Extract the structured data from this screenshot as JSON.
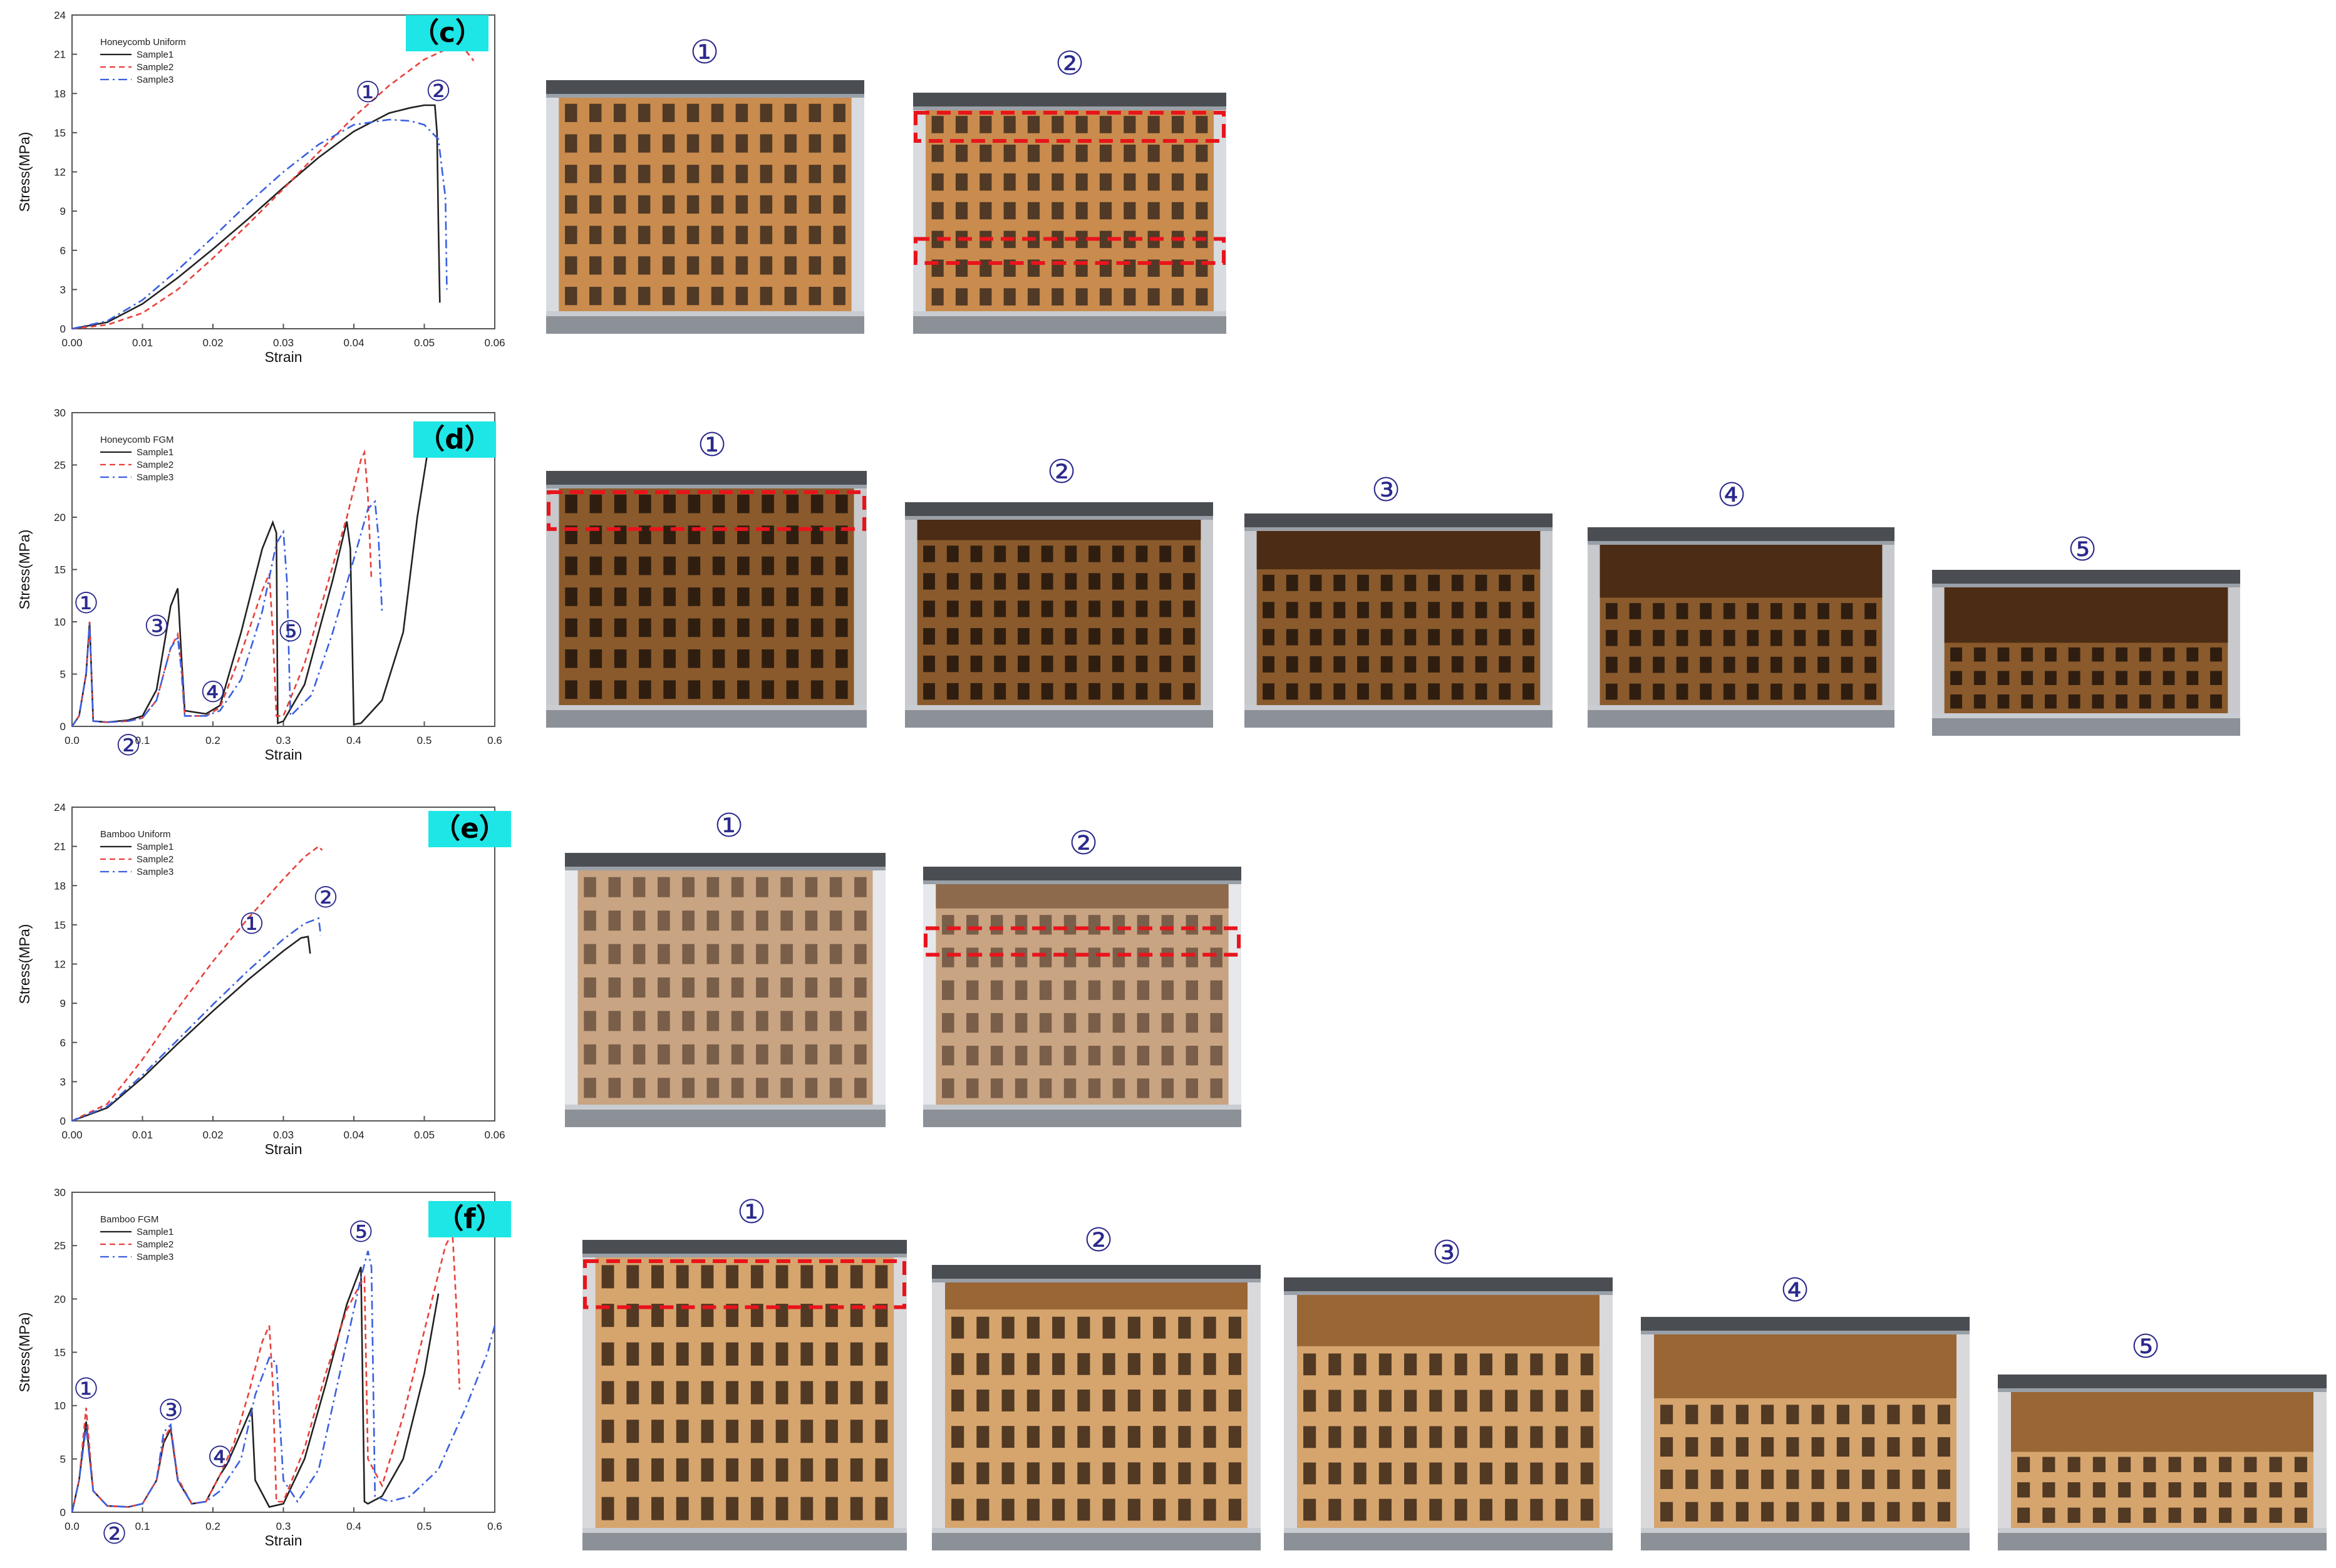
{
  "chart_data": [
    {
      "type": "line",
      "panel": "(c)",
      "legend_title": "Honeycomb Uniform",
      "xlabel": "Strain",
      "ylabel": "Stress(MPa)",
      "xlim": [
        0,
        0.06
      ],
      "ylim": [
        0,
        24
      ],
      "xticks": [
        "0.00",
        "0.01",
        "0.02",
        "0.03",
        "0.04",
        "0.05",
        "0.06"
      ],
      "yticks": [
        "0",
        "3",
        "6",
        "9",
        "12",
        "15",
        "18",
        "21",
        "24"
      ],
      "legend_position": "top-left",
      "markers": [
        {
          "label": "①",
          "x": 0.042,
          "y": 18.1
        },
        {
          "label": "②",
          "x": 0.052,
          "y": 18.2
        }
      ],
      "series": [
        {
          "name": "Sample1",
          "color": "#222222",
          "dash": "solid",
          "x": [
            0,
            0.005,
            0.01,
            0.015,
            0.02,
            0.025,
            0.03,
            0.035,
            0.04,
            0.045,
            0.048,
            0.05,
            0.0515,
            0.0518,
            0.052,
            0.0522
          ],
          "y": [
            0,
            0.5,
            1.9,
            3.9,
            6.1,
            8.4,
            10.8,
            13.1,
            15.1,
            16.5,
            16.9,
            17.1,
            17.1,
            15.0,
            8.0,
            2.0
          ]
        },
        {
          "name": "Sample2",
          "color": "#e8403a",
          "dash": "dash",
          "x": [
            0,
            0.005,
            0.01,
            0.015,
            0.02,
            0.025,
            0.03,
            0.035,
            0.04,
            0.045,
            0.05,
            0.054,
            0.056,
            0.057
          ],
          "y": [
            0,
            0.3,
            1.2,
            3.0,
            5.4,
            8.0,
            10.7,
            13.5,
            16.2,
            18.6,
            20.6,
            21.6,
            21.2,
            20.5
          ]
        },
        {
          "name": "Sample3",
          "color": "#3a5fe0",
          "dash": "dashdot",
          "x": [
            0,
            0.005,
            0.01,
            0.015,
            0.02,
            0.025,
            0.03,
            0.035,
            0.04,
            0.045,
            0.048,
            0.05,
            0.052,
            0.053,
            0.0532
          ],
          "y": [
            0,
            0.6,
            2.2,
            4.5,
            7.0,
            9.6,
            12.0,
            14.1,
            15.6,
            16.0,
            15.9,
            15.6,
            14.5,
            10.0,
            3.0
          ]
        }
      ]
    },
    {
      "type": "line",
      "panel": "(d)",
      "legend_title": "Honeycomb FGM",
      "xlabel": "Strain",
      "ylabel": "Stress(MPa)",
      "xlim": [
        0,
        0.6
      ],
      "ylim": [
        0,
        30
      ],
      "xticks": [
        "0.0",
        "0.1",
        "0.2",
        "0.3",
        "0.4",
        "0.5",
        "0.6"
      ],
      "yticks": [
        "0",
        "5",
        "10",
        "15",
        "20",
        "25",
        "30"
      ],
      "legend_position": "top-left",
      "markers": [
        {
          "label": "①",
          "x": 0.02,
          "y": 11.8
        },
        {
          "label": "②",
          "x": 0.08,
          "y": -1.8
        },
        {
          "label": "③",
          "x": 0.12,
          "y": 9.6
        },
        {
          "label": "④",
          "x": 0.2,
          "y": 3.3
        },
        {
          "label": "⑤",
          "x": 0.31,
          "y": 9.1
        }
      ],
      "series": [
        {
          "name": "Sample1",
          "color": "#222222",
          "dash": "solid",
          "x": [
            0,
            0.01,
            0.02,
            0.025,
            0.03,
            0.05,
            0.08,
            0.1,
            0.12,
            0.14,
            0.15,
            0.155,
            0.16,
            0.19,
            0.21,
            0.24,
            0.27,
            0.285,
            0.29,
            0.292,
            0.3,
            0.33,
            0.35,
            0.37,
            0.39,
            0.395,
            0.4,
            0.41,
            0.44,
            0.47,
            0.49,
            0.51
          ],
          "y": [
            0,
            1,
            5,
            10,
            0.5,
            0.4,
            0.6,
            1.0,
            3.5,
            11.5,
            13.2,
            7.0,
            1.5,
            1.2,
            2.0,
            9.0,
            17.0,
            19.5,
            18.5,
            0.3,
            0.5,
            4.0,
            9.0,
            14.0,
            19.6,
            17.0,
            0.2,
            0.3,
            2.5,
            9.0,
            20.0,
            28.5
          ]
        },
        {
          "name": "Sample2",
          "color": "#e8403a",
          "dash": "dash",
          "x": [
            0,
            0.01,
            0.02,
            0.025,
            0.03,
            0.05,
            0.08,
            0.1,
            0.12,
            0.14,
            0.15,
            0.155,
            0.16,
            0.19,
            0.21,
            0.24,
            0.27,
            0.28,
            0.285,
            0.29,
            0.3,
            0.33,
            0.36,
            0.39,
            0.41,
            0.415,
            0.42,
            0.425
          ],
          "y": [
            0,
            1,
            5,
            10,
            0.5,
            0.4,
            0.5,
            0.8,
            2.5,
            7.5,
            8.8,
            6.0,
            1.0,
            1.0,
            1.8,
            7.0,
            13.0,
            14.6,
            9.0,
            1.0,
            1.0,
            6.0,
            13.0,
            20.0,
            25.5,
            26.2,
            22.0,
            14.0
          ]
        },
        {
          "name": "Sample3",
          "color": "#3a5fe0",
          "dash": "dashdot",
          "x": [
            0,
            0.01,
            0.02,
            0.025,
            0.03,
            0.05,
            0.08,
            0.1,
            0.12,
            0.14,
            0.15,
            0.155,
            0.16,
            0.19,
            0.21,
            0.24,
            0.27,
            0.29,
            0.3,
            0.305,
            0.31,
            0.34,
            0.37,
            0.4,
            0.42,
            0.43,
            0.435,
            0.44
          ],
          "y": [
            0,
            1,
            5,
            9.8,
            0.5,
            0.4,
            0.5,
            0.8,
            2.5,
            7.5,
            8.5,
            5.5,
            1.0,
            1.0,
            1.5,
            4.5,
            11.0,
            17.5,
            18.6,
            14.0,
            1.0,
            3.0,
            9.0,
            16.0,
            20.8,
            21.5,
            18.0,
            11.0
          ]
        }
      ]
    },
    {
      "type": "line",
      "panel": "(e)",
      "legend_title": "Bamboo Uniform",
      "xlabel": "Strain",
      "ylabel": "Stress(MPa)",
      "xlim": [
        0,
        0.06
      ],
      "ylim": [
        0,
        24
      ],
      "xticks": [
        "0.00",
        "0.01",
        "0.02",
        "0.03",
        "0.04",
        "0.05",
        "0.06"
      ],
      "yticks": [
        "0",
        "3",
        "6",
        "9",
        "12",
        "15",
        "18",
        "21",
        "24"
      ],
      "legend_position": "top-left",
      "markers": [
        {
          "label": "①",
          "x": 0.0255,
          "y": 15.1
        },
        {
          "label": "②",
          "x": 0.036,
          "y": 17.1
        }
      ],
      "series": [
        {
          "name": "Sample1",
          "color": "#222222",
          "dash": "solid",
          "x": [
            0,
            0.005,
            0.01,
            0.015,
            0.02,
            0.025,
            0.03,
            0.0325,
            0.0335,
            0.0338
          ],
          "y": [
            0,
            1.0,
            3.3,
            5.9,
            8.4,
            10.8,
            13.0,
            14.0,
            14.1,
            12.8
          ]
        },
        {
          "name": "Sample2",
          "color": "#e8403a",
          "dash": "dash",
          "x": [
            0,
            0.005,
            0.01,
            0.015,
            0.02,
            0.025,
            0.03,
            0.033,
            0.035,
            0.0355
          ],
          "y": [
            0,
            1.3,
            4.7,
            8.6,
            12.2,
            15.5,
            18.5,
            20.2,
            21.0,
            20.7
          ]
        },
        {
          "name": "Sample3",
          "color": "#3a5fe0",
          "dash": "dashdot",
          "x": [
            0,
            0.005,
            0.01,
            0.015,
            0.02,
            0.025,
            0.03,
            0.033,
            0.035,
            0.0353
          ],
          "y": [
            0,
            1.1,
            3.5,
            6.2,
            8.9,
            11.5,
            13.9,
            15.1,
            15.5,
            14.2
          ]
        }
      ]
    },
    {
      "type": "line",
      "panel": "(f)",
      "legend_title": "Bamboo FGM",
      "xlabel": "Strain",
      "ylabel": "Stress(MPa)",
      "xlim": [
        0,
        0.6
      ],
      "ylim": [
        0,
        30
      ],
      "xticks": [
        "0.0",
        "0.1",
        "0.2",
        "0.3",
        "0.4",
        "0.5",
        "0.6"
      ],
      "yticks": [
        "0",
        "5",
        "10",
        "15",
        "20",
        "25",
        "30"
      ],
      "legend_position": "top-left",
      "markers": [
        {
          "label": "①",
          "x": 0.02,
          "y": 11.6
        },
        {
          "label": "②",
          "x": 0.06,
          "y": -2.0
        },
        {
          "label": "③",
          "x": 0.14,
          "y": 9.6
        },
        {
          "label": "④",
          "x": 0.21,
          "y": 5.2
        },
        {
          "label": "⑤",
          "x": 0.41,
          "y": 26.3
        }
      ],
      "series": [
        {
          "name": "Sample1",
          "color": "#222222",
          "dash": "solid",
          "x": [
            0,
            0.01,
            0.02,
            0.03,
            0.05,
            0.08,
            0.1,
            0.12,
            0.13,
            0.14,
            0.15,
            0.17,
            0.19,
            0.21,
            0.22,
            0.24,
            0.255,
            0.26,
            0.28,
            0.3,
            0.33,
            0.36,
            0.39,
            0.41,
            0.415,
            0.42,
            0.44,
            0.47,
            0.5,
            0.52
          ],
          "y": [
            0,
            3,
            8.5,
            2,
            0.6,
            0.5,
            0.8,
            3,
            6.5,
            7.8,
            3.0,
            0.8,
            1.0,
            3.5,
            4.5,
            7.5,
            9.8,
            3.0,
            0.5,
            0.8,
            5.0,
            12.0,
            19.5,
            23.0,
            1.0,
            0.8,
            1.5,
            5.0,
            13.0,
            20.5
          ]
        },
        {
          "name": "Sample2",
          "color": "#e8403a",
          "dash": "dash",
          "x": [
            0,
            0.01,
            0.02,
            0.03,
            0.05,
            0.08,
            0.1,
            0.12,
            0.13,
            0.14,
            0.15,
            0.17,
            0.19,
            0.21,
            0.23,
            0.25,
            0.27,
            0.28,
            0.285,
            0.29,
            0.3,
            0.33,
            0.36,
            0.39,
            0.41,
            0.415,
            0.42,
            0.44,
            0.47,
            0.5,
            0.53,
            0.54,
            0.545,
            0.55
          ],
          "y": [
            0,
            3,
            9.8,
            2,
            0.6,
            0.5,
            0.8,
            3,
            6.8,
            8.0,
            3.2,
            0.8,
            1.0,
            3.5,
            6.5,
            11.0,
            16.0,
            17.5,
            12.0,
            1.0,
            1.0,
            6.0,
            13.0,
            19.0,
            21.5,
            22.0,
            5.0,
            2.5,
            9.0,
            17.0,
            25.0,
            26.2,
            20.0,
            11.5
          ]
        },
        {
          "name": "Sample3",
          "color": "#3a5fe0",
          "dash": "dashdot",
          "x": [
            0,
            0.01,
            0.02,
            0.03,
            0.05,
            0.08,
            0.1,
            0.12,
            0.13,
            0.14,
            0.15,
            0.17,
            0.19,
            0.21,
            0.24,
            0.26,
            0.28,
            0.29,
            0.3,
            0.32,
            0.35,
            0.38,
            0.41,
            0.42,
            0.425,
            0.43,
            0.45,
            0.48,
            0.52,
            0.56,
            0.59,
            0.6
          ],
          "y": [
            0,
            3,
            8.0,
            2,
            0.6,
            0.5,
            0.8,
            3,
            7.5,
            8.2,
            3.0,
            0.8,
            1.0,
            2.0,
            5.0,
            11.0,
            14.5,
            14.0,
            3.0,
            1.0,
            4.0,
            13.0,
            22.0,
            24.5,
            23.0,
            1.5,
            1.0,
            1.5,
            4.0,
            10.0,
            15.0,
            17.5
          ]
        }
      ]
    }
  ],
  "panels": [
    {
      "tag": "（c）",
      "photo_labels": [
        "①",
        "②"
      ]
    },
    {
      "tag": "（d）",
      "photo_labels": [
        "①",
        "②",
        "③",
        "④",
        "⑤"
      ]
    },
    {
      "tag": "（e）",
      "photo_labels": [
        "①",
        "②"
      ]
    },
    {
      "tag": "（f）",
      "photo_labels": [
        "①",
        "②",
        "③",
        "④",
        "⑤"
      ]
    }
  ],
  "colors": {
    "sample1": "#222222",
    "sample2": "#e8403a",
    "sample3": "#3a5fe0",
    "tag_bg": "#1ee6e6",
    "step_label": "#2b2a8c",
    "highlight_box": "#e8141c"
  }
}
